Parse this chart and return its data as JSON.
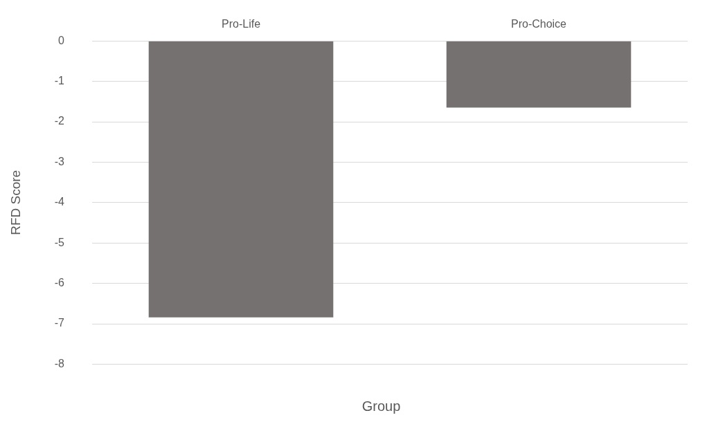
{
  "chart_data": {
    "type": "bar",
    "xlabel": "Group",
    "ylabel": "RFD Score",
    "categories": [
      "Pro-Life",
      "Pro-Choice"
    ],
    "values": [
      -6.84,
      -1.65
    ],
    "color": "#767171",
    "ylim": [
      -8,
      0
    ],
    "yticks": [
      -8,
      -7,
      -6,
      -5,
      -4,
      -3,
      -2,
      -1,
      0
    ],
    "grid": "y",
    "legend": false
  }
}
